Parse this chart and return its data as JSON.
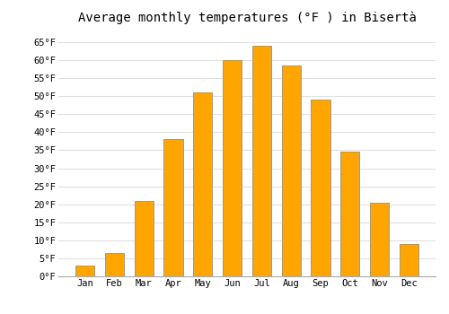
{
  "title": "Average monthly temperatures (°F ) in Bisertà",
  "months": [
    "Jan",
    "Feb",
    "Mar",
    "Apr",
    "May",
    "Jun",
    "Jul",
    "Aug",
    "Sep",
    "Oct",
    "Nov",
    "Dec"
  ],
  "values": [
    3,
    6.5,
    21,
    38,
    51,
    60,
    64,
    58.5,
    49,
    34.5,
    20.5,
    9
  ],
  "bar_color": "#FFA500",
  "bar_edge_color": "#999999",
  "background_color": "#ffffff",
  "grid_color": "#e0e0e0",
  "ylim": [
    0,
    68
  ],
  "yticks": [
    0,
    5,
    10,
    15,
    20,
    25,
    30,
    35,
    40,
    45,
    50,
    55,
    60,
    65
  ],
  "ytick_labels": [
    "0°F",
    "5°F",
    "10°F",
    "15°F",
    "20°F",
    "25°F",
    "30°F",
    "35°F",
    "40°F",
    "45°F",
    "50°F",
    "55°F",
    "60°F",
    "65°F"
  ],
  "title_fontsize": 10,
  "tick_fontsize": 7.5,
  "font_family": "monospace",
  "bar_width": 0.65
}
